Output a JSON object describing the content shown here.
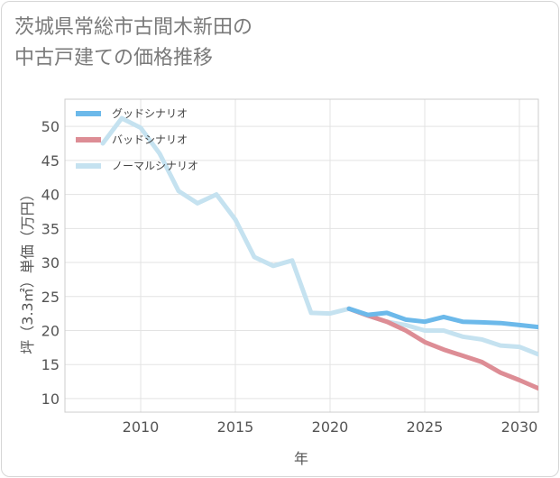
{
  "title_lines": [
    "茨城県常総市古間木新田の",
    "中古戸建ての価格推移"
  ],
  "chart_data": {
    "type": "line",
    "xlabel": "年",
    "ylabel": "坪（3.3㎡）単価（万円）",
    "xlim": [
      2006,
      2031
    ],
    "ylim": [
      8,
      54
    ],
    "x_ticks": [
      2010,
      2015,
      2020,
      2025,
      2030
    ],
    "y_ticks": [
      10,
      15,
      20,
      25,
      30,
      35,
      40,
      45,
      50
    ],
    "grid": true,
    "legend_position": "top-left",
    "series": [
      {
        "name": "ノーマルシナリオ",
        "color": "#c5e2f0",
        "x": [
          2008,
          2009,
          2010,
          2011,
          2012,
          2013,
          2014,
          2015,
          2016,
          2017,
          2018,
          2019,
          2020,
          2021,
          2022,
          2023,
          2024,
          2025,
          2026,
          2027,
          2028,
          2029,
          2030,
          2031
        ],
        "values": [
          47.5,
          51.2,
          49.8,
          46,
          40.5,
          38.7,
          40,
          36.3,
          30.8,
          29.5,
          30.3,
          22.6,
          22.5,
          23.2,
          22.2,
          21.3,
          20.8,
          20.0,
          20.0,
          19.1,
          18.7,
          17.8,
          17.6,
          16.5
        ]
      },
      {
        "name": "バッドシナリオ",
        "color": "#dd8d95",
        "x": [
          2021,
          2022,
          2023,
          2024,
          2025,
          2026,
          2027,
          2028,
          2029,
          2030,
          2031
        ],
        "values": [
          23.2,
          22.2,
          21.3,
          20.0,
          18.3,
          17.2,
          16.3,
          15.4,
          13.8,
          12.7,
          11.5
        ]
      },
      {
        "name": "グッドシナリオ",
        "color": "#6cb9ea",
        "x": [
          2021,
          2022,
          2023,
          2024,
          2025,
          2026,
          2027,
          2028,
          2029,
          2030,
          2031
        ],
        "values": [
          23.2,
          22.3,
          22.6,
          21.6,
          21.3,
          22.0,
          21.3,
          21.2,
          21.1,
          20.8,
          20.5
        ]
      }
    ],
    "legend_order": [
      "グッドシナリオ",
      "バッドシナリオ",
      "ノーマルシナリオ"
    ]
  }
}
